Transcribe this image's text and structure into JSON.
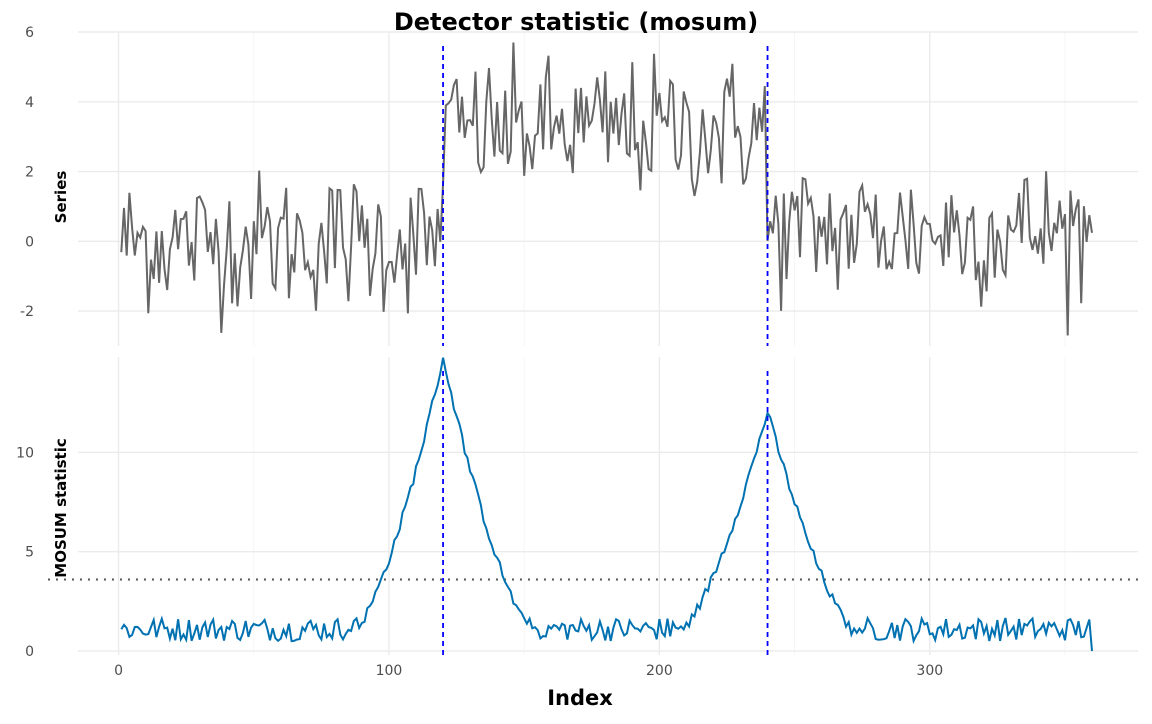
{
  "chart_data": {
    "type": "line",
    "title": "Detector statistic (mosum)",
    "xlabel": "Index",
    "x_range": [
      1,
      360
    ],
    "x_ticks": [
      0,
      100,
      200,
      300
    ],
    "changepoints": [
      120,
      240
    ],
    "changepoint_color": "#0000ff",
    "panels": [
      {
        "ylabel": "Series",
        "ylim": [
          -3,
          6
        ],
        "y_ticks": [
          -2,
          0,
          2,
          4,
          6
        ],
        "line_color": "#666666",
        "segments": [
          {
            "start": 1,
            "end": 119,
            "level": 0
          },
          {
            "start": 120,
            "end": 239,
            "level": 3.2
          },
          {
            "start": 240,
            "end": 360,
            "level": 0.3
          }
        ],
        "noise_sd": 1.0
      },
      {
        "ylabel": "MOSUM statistic",
        "ylim": [
          -0.2,
          14.8
        ],
        "y_ticks": [
          0,
          5,
          10
        ],
        "threshold": 3.6,
        "line_color": "#0072b2",
        "peaks": [
          {
            "x": 120,
            "height": 14.5
          },
          {
            "x": 240,
            "height": 11.8
          }
        ],
        "baseline_range": [
          0,
          2
        ]
      }
    ]
  }
}
